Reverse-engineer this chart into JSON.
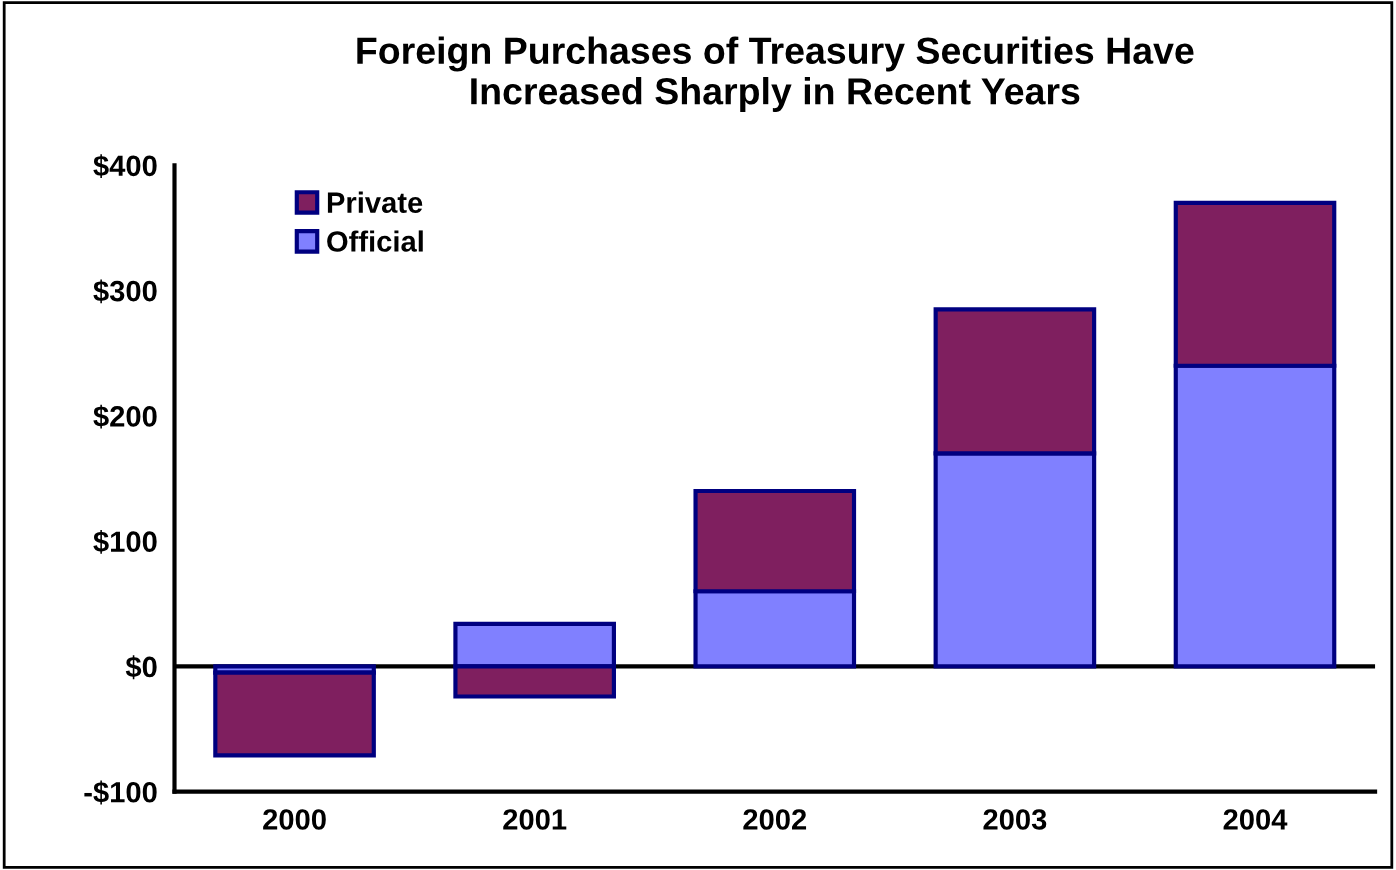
{
  "chart_data": {
    "type": "bar",
    "stacked": true,
    "title": "Foreign Purchases of Treasury Securities Have\nIncreased Sharply in Recent Years",
    "categories": [
      "2000",
      "2001",
      "2002",
      "2003",
      "2004"
    ],
    "series": [
      {
        "name": "Official",
        "color": "#8080ff",
        "values": [
          -5,
          34,
          60,
          170,
          240
        ]
      },
      {
        "name": "Private",
        "color": "#7f1f5f",
        "values": [
          -66,
          -24,
          80,
          115,
          130
        ]
      }
    ],
    "ylim": [
      -100,
      400
    ],
    "yticks": [
      {
        "value": -100,
        "label": "-$100"
      },
      {
        "value": 0,
        "label": "$0"
      },
      {
        "value": 100,
        "label": "$100"
      },
      {
        "value": 200,
        "label": "$200"
      },
      {
        "value": 300,
        "label": "$300"
      },
      {
        "value": 400,
        "label": "$400"
      }
    ],
    "ref_lines": [
      {
        "axis": "y",
        "value": 0,
        "color": "#000000",
        "line_style": "solid"
      }
    ],
    "legend": "top left"
  }
}
